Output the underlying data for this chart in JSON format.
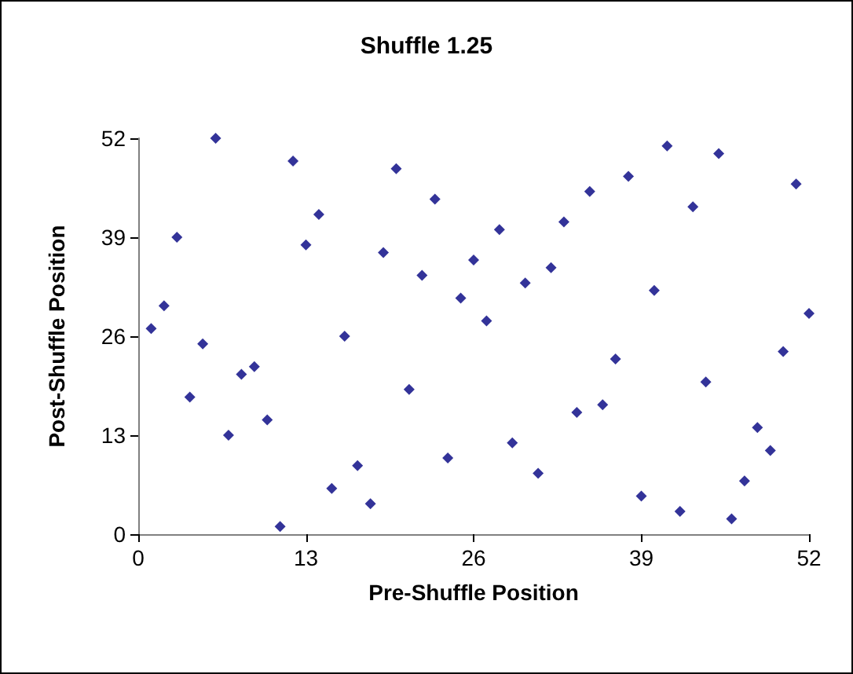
{
  "chart_data": {
    "type": "scatter",
    "title": "Shuffle 1.25",
    "xlabel": "Pre-Shuffle Position",
    "ylabel": "Post-Shuffle Position",
    "x": [
      1,
      2,
      3,
      4,
      5,
      6,
      7,
      8,
      9,
      10,
      11,
      12,
      13,
      14,
      15,
      16,
      17,
      18,
      19,
      20,
      21,
      22,
      23,
      24,
      25,
      26,
      27,
      28,
      29,
      30,
      31,
      32,
      33,
      34,
      35,
      36,
      37,
      38,
      39,
      40,
      41,
      42,
      43,
      44,
      45,
      46,
      47,
      48,
      49,
      50,
      51,
      52
    ],
    "series": [
      {
        "color": "#000080",
        "values": [
          27,
          30,
          39,
          18,
          25,
          52,
          13,
          21,
          22,
          15,
          1,
          49,
          38,
          42,
          6,
          26,
          9,
          4,
          37,
          48,
          19,
          34,
          44,
          10,
          31,
          36,
          28,
          40,
          12,
          33,
          8,
          35,
          41,
          16,
          45,
          17,
          23,
          47,
          5,
          32,
          51,
          3,
          43,
          20,
          50,
          2,
          7,
          14,
          11,
          24,
          46,
          29
        ]
      }
    ],
    "xlim": [
      0,
      52
    ],
    "xticks": [
      0,
      13,
      26,
      39,
      52
    ],
    "ylim": [
      0,
      52
    ],
    "yticks": [
      0,
      13,
      26,
      39,
      52
    ],
    "grid": false,
    "marker": "diamond"
  }
}
